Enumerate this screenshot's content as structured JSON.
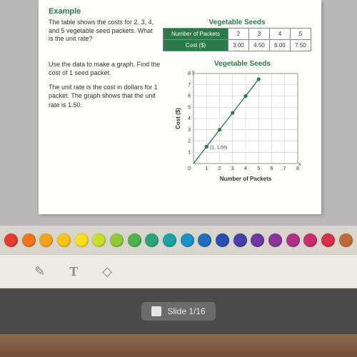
{
  "worksheet": {
    "example_label": "Example",
    "intro": "The table shows the costs for 2, 3, 4, and 5 vegetable seed packets. What is the unit rate?",
    "table": {
      "title": "Vegetable Seeds",
      "row_headers": [
        "Number of Packets",
        "Cost ($)"
      ],
      "columns": [
        "2",
        "3",
        "4",
        "5"
      ],
      "costs": [
        "3.00",
        "4.50",
        "6.00",
        "7.50"
      ],
      "header_bg": "#2a7a4a",
      "header_fg": "#ffffff",
      "cell_bg": "#ffffff",
      "border": "#888888"
    },
    "instruction1": "Use the data to make a graph. Find the cost of 1 seed packet.",
    "instruction2": "The unit rate is the cost in dollars for 1 packet. The graph shows that the unit rate is 1.50.",
    "chart": {
      "type": "line",
      "title": "Vegetable Seeds",
      "xlabel": "Number of Packets",
      "ylabel": "Cost ($)",
      "xlim": [
        0,
        8
      ],
      "ylim": [
        0,
        8
      ],
      "xtick_step": 1,
      "ytick_step": 1,
      "points": [
        [
          1,
          1.5
        ],
        [
          2,
          3
        ],
        [
          3,
          4.5
        ],
        [
          4,
          6
        ],
        [
          5,
          7.5
        ]
      ],
      "point_label": "(1, 1.50)",
      "line_color": "#2a7a4a",
      "point_color": "#2a7a4a",
      "grid_color": "#c9c9c9",
      "axis_color": "#333333",
      "background_color": "#ffffff",
      "label_fontsize": 7,
      "title_fontsize": 10
    }
  },
  "palette": {
    "colors": [
      "#e63b2e",
      "#f0731e",
      "#f4a41c",
      "#f6c417",
      "#f7e01a",
      "#cbdc2a",
      "#8fc93a",
      "#4caf50",
      "#2aa57a",
      "#1aa3a3",
      "#1793c9",
      "#1f6fc2",
      "#2a4fb0",
      "#4b3fa8",
      "#6c3aa2",
      "#8b3597",
      "#b0308a",
      "#c92d6e",
      "#d9304b",
      "#c06a3a"
    ]
  },
  "tools": {
    "pen_icon": "✎",
    "text_icon": "T",
    "eraser_icon": "◇"
  },
  "bottombar": {
    "slide_text": "Slide 1/16"
  }
}
